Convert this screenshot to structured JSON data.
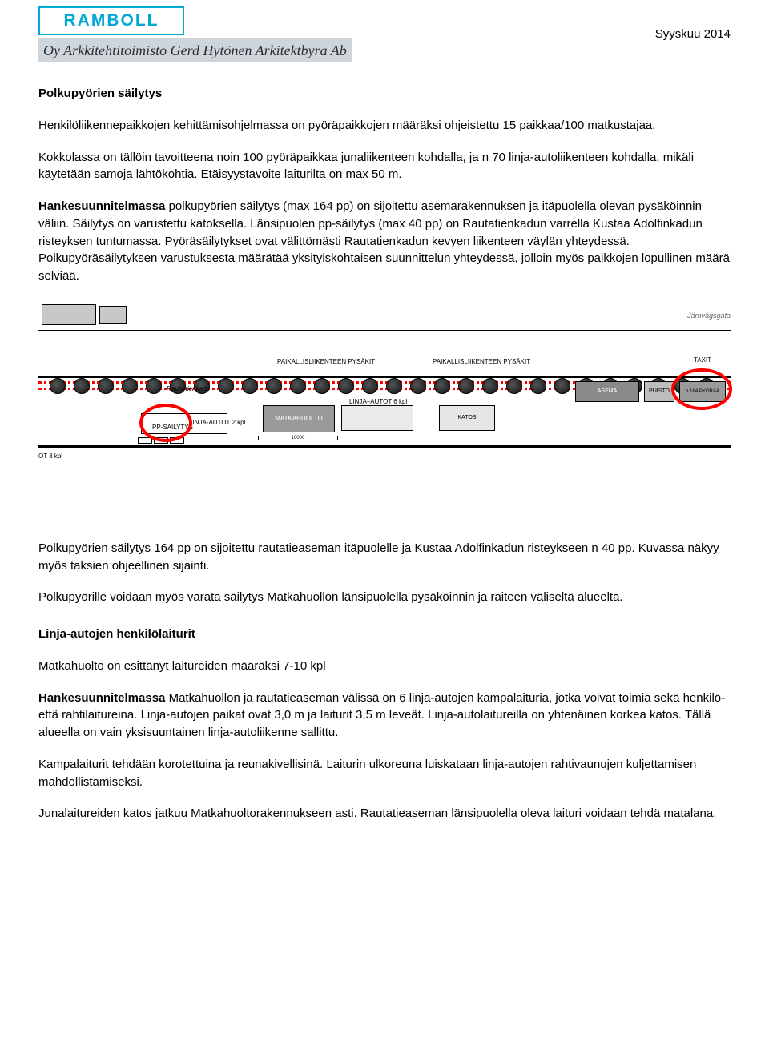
{
  "header": {
    "logo_text": "RAMBOLL",
    "subline": "Oy Arkkitehtitoimisto Gerd Hytönen Arkitektbyra Ab",
    "date": "Syyskuu 2014"
  },
  "h1": "Polkupyörien säilytys",
  "p1": "Henkilöliikennepaikkojen kehittämisohjelmassa on pyöräpaikkojen määräksi ohjeistettu 15 paikkaa/100 matkustajaa.",
  "p2": "Kokkolassa on tällöin tavoitteena noin 100 pyöräpaikkaa junaliikenteen kohdalla, ja n 70 linja-autoliikenteen kohdalla, mikäli käytetään samoja lähtökohtia. Etäisyystavoite laiturilta on max 50 m.",
  "p3_bold": "Hankesuunnitelmassa",
  "p3_rest": " polkupyörien säilytys (max 164 pp) on sijoitettu asemarakennuksen ja itäpuolella olevan pysäköinnin väliin. Säilytys on varustettu katoksella. Länsipuolen pp-säilytys (max 40 pp) on Rautatienkadun varrella Kustaa Adolfinkadun risteyksen tuntumassa. Pyöräsäilytykset ovat välittömästi Rautatienkadun kevyen liikenteen väylän yhteydessä. Polkupyöräsäilytyksen varustuksesta määrätää yksityiskohtaisen suunnittelun yhteydessä, jolloin myös paikkojen lopullinen määrä selviää.",
  "diagram": {
    "matkahuolto": "MATKAHUOLTO",
    "linja_autot": "LINJA–AUTOT 6 kpl",
    "linja_autot_label": "LINJA-AUTOT 2 kpl",
    "katos": "KATOS",
    "asema": "ASEMA",
    "puisto": "PUISTO",
    "pyorat": "n 164 PYÖRÄÄ",
    "pysakit": "PAIKALLISLIIKENTEEN PYSÄKIT",
    "rautatienkatu": "Rauta tienka tu",
    "taxit": "TAXIT",
    "pp_sailytys": "PP-SÄILYTYS",
    "ot": "OT 8 kpl",
    "ruler": "10000",
    "jarnvag": "Järnvägsgata"
  },
  "p4": "Polkupyörien säilytys 164 pp on sijoitettu rautatieaseman itäpuolelle ja Kustaa Adolfinkadun risteykseen n 40 pp. Kuvassa näkyy myös taksien ohjeellinen sijainti.",
  "p5": "Polkupyörille voidaan myös varata säilytys Matkahuollon länsipuolella pysäköinnin ja raiteen väliseltä alueelta.",
  "h2": "Linja-autojen henkilölaiturit",
  "p6": "Matkahuolto on esittänyt laitureiden määräksi 7-10 kpl",
  "p7_bold": "Hankesuunnitelmassa",
  "p7_rest": " Matkahuollon ja rautatieaseman välissä on 6 linja-autojen kampalaituria, jotka voivat toimia sekä henkilö- että rahtilaitureina.  Linja-autojen paikat ovat 3,0 m ja laiturit 3,5 m leveät. Linja-autolaitureilla on yhtenäinen korkea katos. Tällä alueella on vain yksisuuntainen linja-autoliikenne sallittu.",
  "p8": "Kampalaiturit tehdään korotettuina ja reunakivellisinä. Laiturin ulkoreuna luiskataan linja-autojen rahtivaunujen kuljettamisen mahdollistamiseksi.",
  "p9": "Junalaitureiden katos jatkuu Matkahuoltorakennukseen asti. Rautatieaseman länsipuolella oleva laituri voidaan tehdä matalana."
}
